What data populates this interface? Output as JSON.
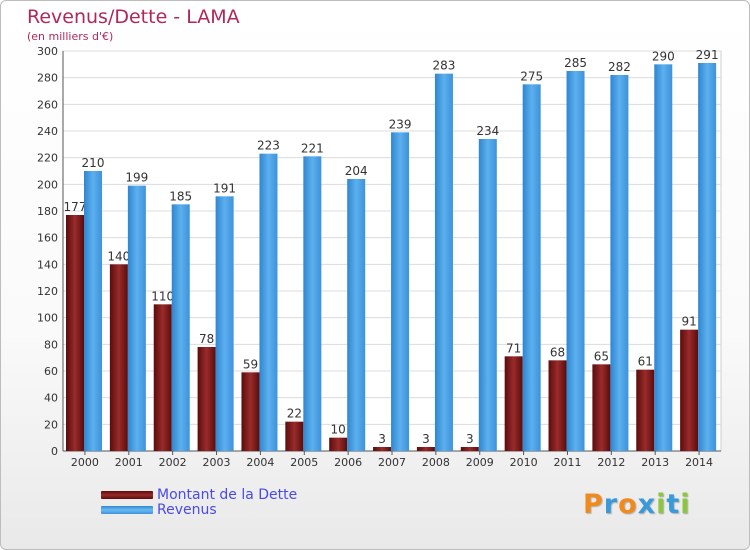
{
  "chart_data": {
    "type": "bar",
    "title": "Revenus/Dette - LAMA",
    "subtitle": "(en milliers d'€)",
    "categories": [
      "2000",
      "2001",
      "2002",
      "2003",
      "2004",
      "2005",
      "2006",
      "2007",
      "2008",
      "2009",
      "2010",
      "2011",
      "2012",
      "2013",
      "2014"
    ],
    "series": [
      {
        "name": "Montant de la Dette",
        "color": "#7a1a1a",
        "values": [
          177,
          140,
          110,
          78,
          59,
          22,
          10,
          3,
          3,
          3,
          71,
          68,
          65,
          61,
          91
        ]
      },
      {
        "name": "Revenus",
        "color": "#4fa3e6",
        "values": [
          210,
          199,
          185,
          191,
          223,
          221,
          204,
          239,
          283,
          234,
          275,
          285,
          282,
          290,
          291
        ]
      }
    ],
    "y_ticks": [
      "0",
      "20",
      "40",
      "60",
      "80",
      "100",
      "120",
      "140",
      "160",
      "180",
      "200",
      "220",
      "240",
      "260",
      "280",
      "300"
    ],
    "ylim": [
      0,
      300
    ],
    "grid": true,
    "legend_position": "bottom-left"
  },
  "logo": {
    "letters": [
      "P",
      "r",
      "o",
      "x",
      "i",
      "t",
      "i"
    ],
    "colors": [
      "#f08a1c",
      "#3a9ad9",
      "#f08a1c",
      "#3a9ad9",
      "#8cc63f",
      "#3a9ad9",
      "#8cc63f"
    ]
  }
}
